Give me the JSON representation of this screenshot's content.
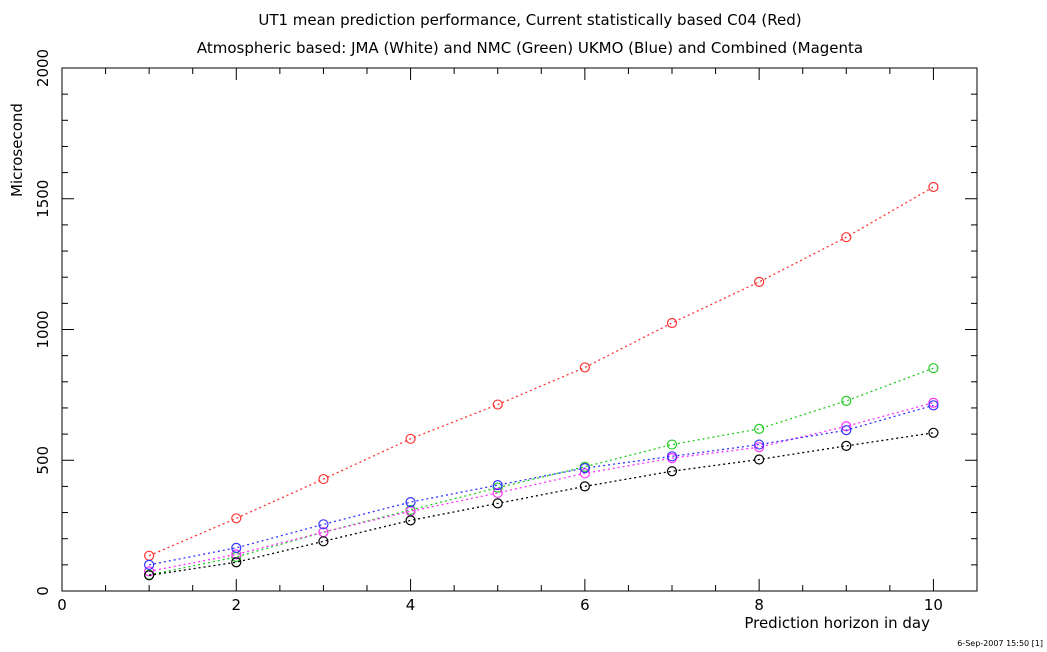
{
  "chart_data": {
    "type": "line",
    "title": "UT1 mean prediction performance, Current statistically based C04 (Red)",
    "subtitle": "Atmospheric based: JMA (White) and NMC (Green) UKMO (Blue) and Combined (Magenta",
    "xlabel": "Prediction horizon in day",
    "ylabel": "Microsecond",
    "xlim": [
      0,
      10.5
    ],
    "ylim": [
      0,
      2000
    ],
    "xticks": [
      0,
      2,
      4,
      6,
      8,
      10
    ],
    "yticks": [
      0,
      500,
      1000,
      1500,
      2000
    ],
    "grid": false,
    "x": [
      1,
      2,
      3,
      4,
      5,
      6,
      7,
      8,
      9,
      10
    ],
    "series": [
      {
        "color": "#ff3333",
        "values": [
          135,
          278,
          428,
          582,
          713,
          855,
          1025,
          1182,
          1353,
          1545
        ]
      },
      {
        "color": "#22cc22",
        "values": [
          62,
          130,
          225,
          310,
          395,
          475,
          560,
          620,
          727,
          852
        ]
      },
      {
        "color": "#ff33ff",
        "values": [
          75,
          140,
          225,
          305,
          375,
          450,
          508,
          550,
          630,
          720
        ]
      },
      {
        "color": "#3333ff",
        "values": [
          100,
          165,
          255,
          340,
          405,
          470,
          515,
          560,
          615,
          710
        ]
      },
      {
        "color": "#000000",
        "values": [
          60,
          110,
          190,
          270,
          335,
          400,
          458,
          503,
          555,
          605
        ]
      }
    ],
    "timestamp": "6-Sep-2007 15:50 [1]"
  }
}
